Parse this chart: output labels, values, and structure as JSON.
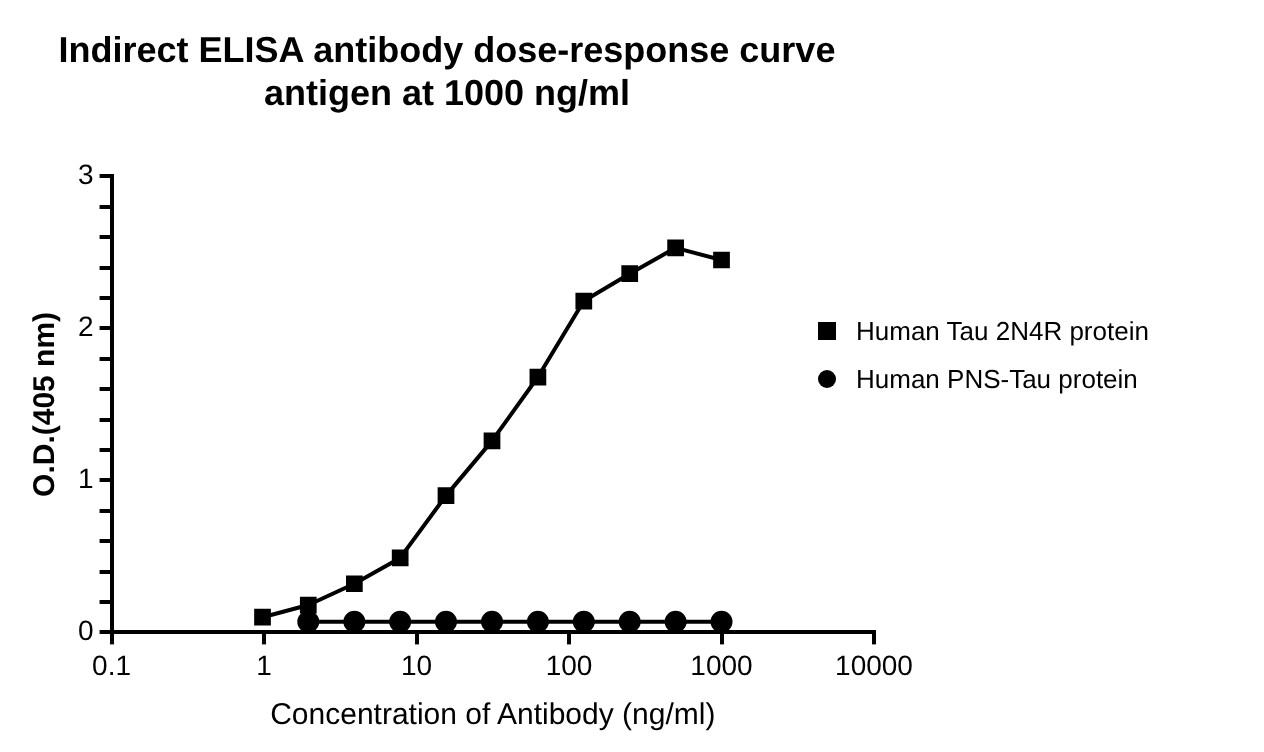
{
  "chart_data": {
    "type": "line",
    "title": [
      "Indirect ELISA antibody dose-response curve",
      "antigen at 1000 ng/ml"
    ],
    "xlabel": "Concentration of Antibody (ng/ml)",
    "ylabel": "O.D.(405 nm)",
    "log": "x",
    "xlim": [
      0.1,
      10000
    ],
    "xticks": [
      0.1,
      1,
      10,
      100,
      1000,
      10000
    ],
    "ylim": [
      0,
      3
    ],
    "yticks": [
      0,
      {
        "value": 0.2,
        "label": null
      },
      {
        "value": 0.4,
        "label": null
      },
      {
        "value": 0.6,
        "label": null
      },
      {
        "value": 0.8,
        "label": null
      },
      1,
      {
        "value": 1.2,
        "label": null
      },
      {
        "value": 1.4,
        "label": null
      },
      {
        "value": 1.6,
        "label": null
      },
      {
        "value": 1.8,
        "label": null
      },
      2,
      {
        "value": 2.2,
        "label": null
      },
      {
        "value": 2.4,
        "label": null
      },
      {
        "value": 2.6,
        "label": null
      },
      {
        "value": 2.8,
        "label": null
      },
      3
    ],
    "x": [
      0.977,
      1.95,
      3.91,
      7.81,
      15.6,
      31.25,
      62.5,
      125,
      250,
      500,
      1000
    ],
    "series": [
      {
        "name": "Human Tau 2N4R protein",
        "color": "#000000",
        "marker": "square",
        "values": [
          0.1,
          0.18,
          0.32,
          0.49,
          0.9,
          1.26,
          1.68,
          2.18,
          2.36,
          2.53,
          2.45
        ]
      },
      {
        "name": "Human PNS-Tau protein",
        "color": "#000000",
        "marker": "circle",
        "values": [
          null,
          0.07,
          0.07,
          0.07,
          0.07,
          0.07,
          0.07,
          0.07,
          0.07,
          0.07,
          0.07
        ]
      }
    ],
    "legend": "right",
    "grid": false
  }
}
